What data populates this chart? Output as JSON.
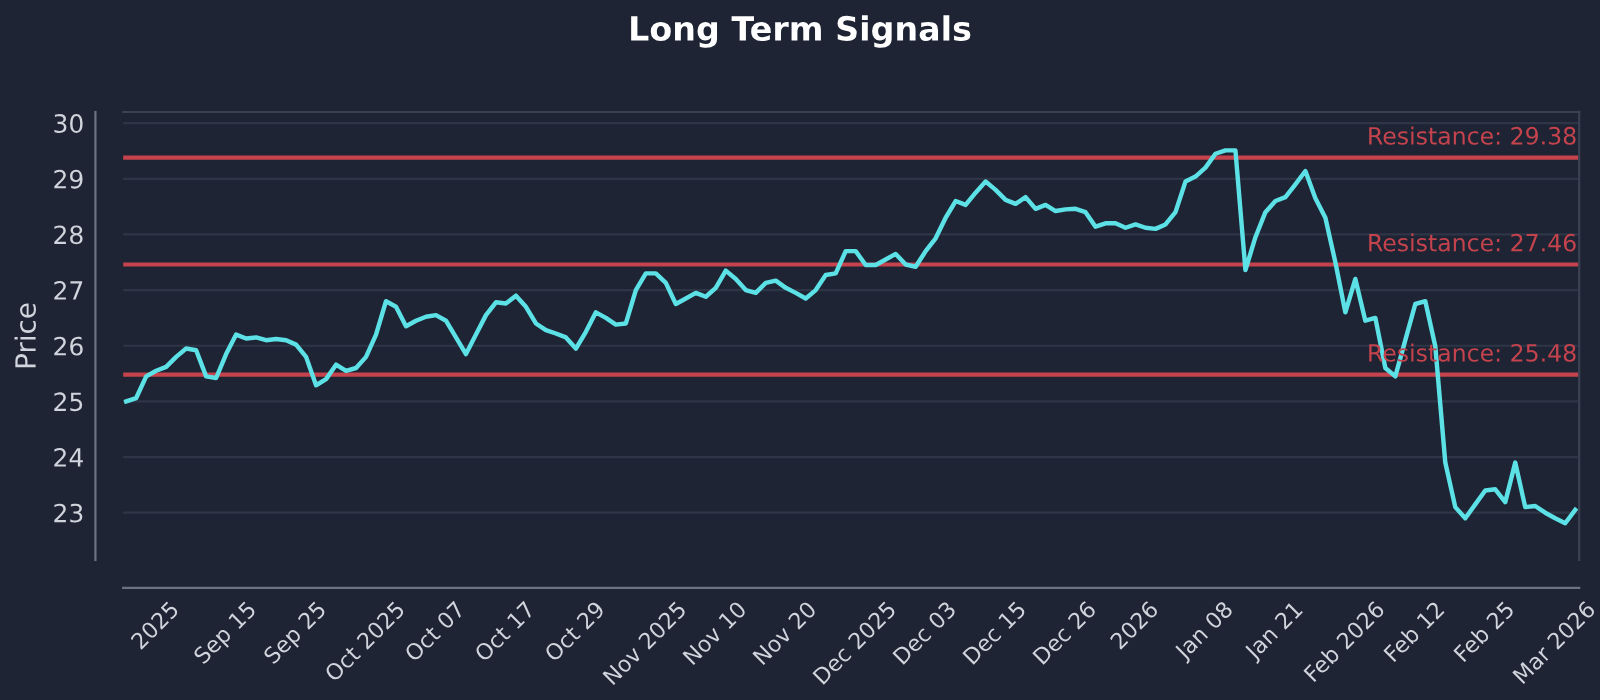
{
  "chart_data": {
    "type": "line",
    "title": "Long Term Signals",
    "ylabel": "Price",
    "categories": [
      null,
      null,
      null,
      "2025",
      null,
      null,
      null,
      null,
      null,
      null,
      "Sep 15",
      null,
      null,
      null,
      null,
      null,
      null,
      "Sep 25",
      null,
      null,
      null,
      null,
      null,
      null,
      "Oct 2025",
      null,
      null,
      null,
      null,
      null,
      null,
      "Oct 07",
      null,
      null,
      null,
      null,
      null,
      null,
      "Oct 17",
      null,
      null,
      null,
      null,
      null,
      null,
      "Oct 29",
      null,
      null,
      null,
      null,
      null,
      null,
      "Nov 2025",
      null,
      null,
      null,
      null,
      null,
      null,
      "Nov 10",
      null,
      null,
      null,
      null,
      null,
      null,
      "Nov 20",
      null,
      null,
      null,
      null,
      null,
      null,
      "Dec 2025",
      null,
      null,
      null,
      null,
      null,
      null,
      "Dec 03",
      null,
      null,
      null,
      null,
      null,
      null,
      "Dec 15",
      null,
      null,
      null,
      null,
      null,
      null,
      "Dec 26",
      null,
      null,
      null,
      null,
      null,
      null,
      "2026",
      null,
      null,
      null,
      null,
      null,
      null,
      "Jan 08",
      null,
      null,
      null,
      null,
      null,
      null,
      "Jan 21",
      null,
      null,
      null,
      null,
      null,
      null,
      "Feb 2026",
      null,
      null,
      null,
      null,
      null,
      null,
      "Feb 12",
      null,
      null,
      null,
      null,
      null,
      null,
      "Feb 25",
      null,
      null,
      null,
      null,
      null,
      null,
      "Mar 2026",
      null,
      null
    ],
    "series": [
      {
        "color": "#5ce1e6",
        "values": [
          25.0,
          25.06,
          25.45,
          25.55,
          25.62,
          25.8,
          25.95,
          25.92,
          25.45,
          25.42,
          25.85,
          26.2,
          26.13,
          26.15,
          26.1,
          26.12,
          26.1,
          26.02,
          25.8,
          25.29,
          25.4,
          25.66,
          25.55,
          25.6,
          25.8,
          26.2,
          26.8,
          26.7,
          26.35,
          26.45,
          26.52,
          26.55,
          26.45,
          26.15,
          25.85,
          26.2,
          26.55,
          26.78,
          26.76,
          26.9,
          26.7,
          26.4,
          26.28,
          26.22,
          26.15,
          25.95,
          26.25,
          26.6,
          26.5,
          26.38,
          26.4,
          27.0,
          27.3,
          27.3,
          27.13,
          26.75,
          26.85,
          26.95,
          26.88,
          27.04,
          27.35,
          27.2,
          27.0,
          26.95,
          27.13,
          27.17,
          27.04,
          26.95,
          26.85,
          27.0,
          27.27,
          27.3,
          27.7,
          27.7,
          27.45,
          27.45,
          27.55,
          27.65,
          27.46,
          27.42,
          27.7,
          27.93,
          28.3,
          28.6,
          28.53,
          28.75,
          28.95,
          28.8,
          28.62,
          28.55,
          28.67,
          28.46,
          28.53,
          28.42,
          28.45,
          28.46,
          28.4,
          28.14,
          28.2,
          28.2,
          28.12,
          28.18,
          28.12,
          28.1,
          28.18,
          28.4,
          28.95,
          29.04,
          29.2,
          29.45,
          29.51,
          29.51,
          27.36,
          27.95,
          28.4,
          28.6,
          28.67,
          28.9,
          29.14,
          28.65,
          28.3,
          27.5,
          26.6,
          27.2,
          26.45,
          26.5,
          25.6,
          25.45,
          26.1,
          26.75,
          26.8,
          25.99,
          23.9,
          23.1,
          22.9,
          23.15,
          23.4,
          23.42,
          23.19,
          23.9,
          23.1,
          23.12,
          23.0,
          22.9,
          22.81,
          23.05
        ]
      }
    ],
    "ylim": [
      22.15,
      30.2
    ],
    "yticks": [
      23,
      24,
      25,
      26,
      27,
      28,
      29,
      30
    ],
    "ref_lines": [
      {
        "axis": "y",
        "value": 29.38,
        "label": "Resistance: 29.38",
        "color": "#c4434d"
      },
      {
        "axis": "y",
        "value": 27.46,
        "label": "Resistance: 27.46",
        "color": "#c4434d"
      },
      {
        "axis": "y",
        "value": 25.48,
        "label": "Resistance: 25.48",
        "color": "#c4434d"
      }
    ],
    "grid": "y",
    "marker": "none",
    "line_style": "solid",
    "legend": false
  }
}
